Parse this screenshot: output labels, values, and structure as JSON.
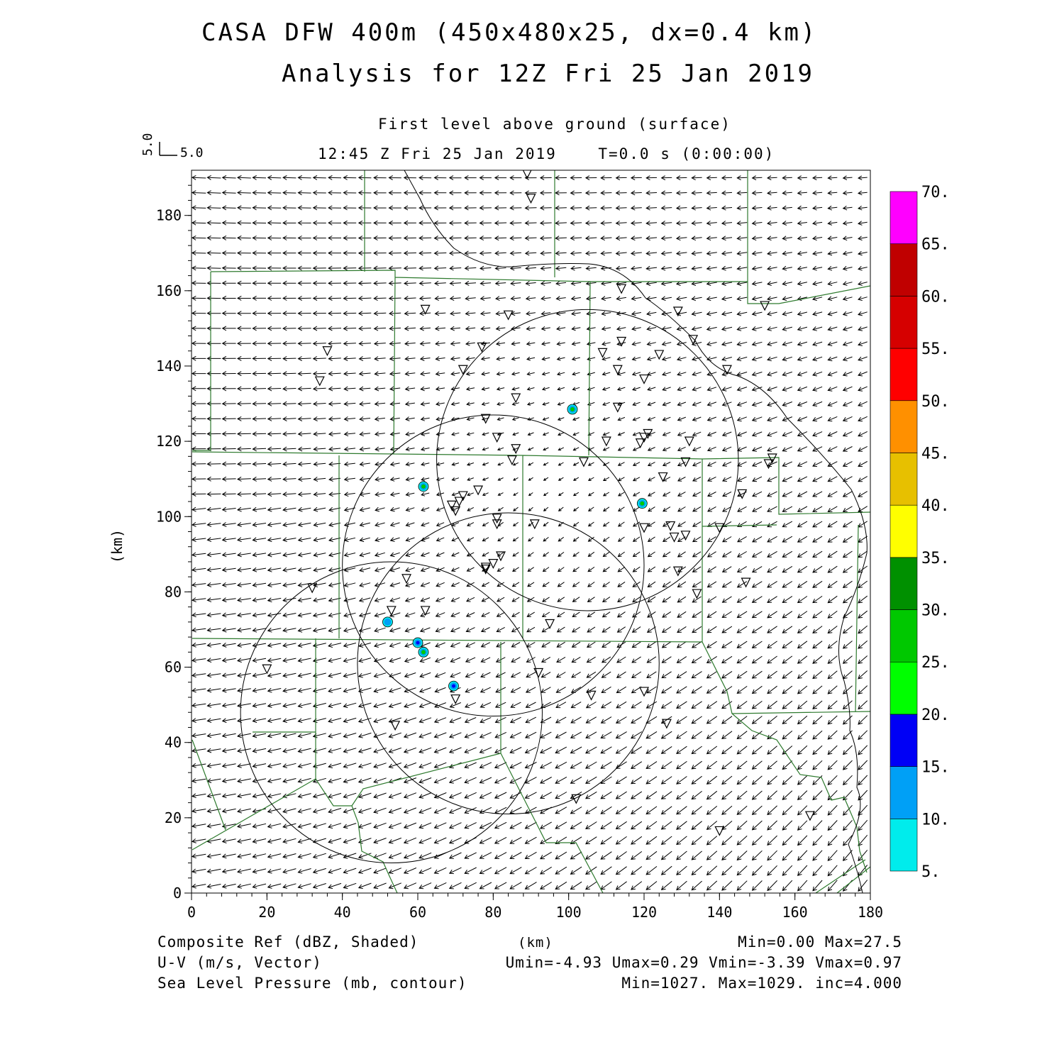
{
  "title": {
    "line1": "CASA DFW 400m (450x480x25, dx=0.4 km)",
    "line2": "Analysis for 12Z Fri 25 Jan 2019"
  },
  "subtitle": {
    "level": "First level above ground (surface)",
    "time": "12:45 Z Fri 25 Jan 2019    T=0.0 s (0:00:00)"
  },
  "vector_key": {
    "u_label": "5.0",
    "v_label": "5.0"
  },
  "footer": {
    "field1": "Composite Ref (dBZ, Shaded)",
    "field2": "U-V (m/s, Vector)",
    "field3": "Sea Level Pressure (mb, contour)",
    "xunit": "(km)",
    "stats1": "Min=0.00 Max=27.5",
    "stats2": "Umin=-4.93 Umax=0.29 Vmin=-3.39 Vmax=0.97",
    "stats3": "Min=1027. Max=1029. inc=4.000"
  },
  "chart_data": {
    "type": "map",
    "xlabel": "",
    "ylabel": "(km)",
    "xlim": [
      0,
      180
    ],
    "ylim": [
      0,
      192
    ],
    "xticks": [
      "0",
      "20",
      "40",
      "60",
      "80",
      "100",
      "120",
      "140",
      "160",
      "180"
    ],
    "yticks": [
      "0",
      "20",
      "40",
      "60",
      "80",
      "100",
      "120",
      "140",
      "160",
      "180"
    ],
    "colorbar": {
      "labels": [
        "5.",
        "10.",
        "15.",
        "20.",
        "25.",
        "30.",
        "35.",
        "40.",
        "45.",
        "50.",
        "55.",
        "60.",
        "65.",
        "70."
      ],
      "colors": [
        "#00ecec",
        "#00a0f6",
        "#0000f6",
        "#00ff00",
        "#00c800",
        "#009000",
        "#ffff00",
        "#e7c000",
        "#ff9000",
        "#ff0000",
        "#d60000",
        "#c00000",
        "#ff00ff"
      ]
    },
    "radar_rings": [
      {
        "cx": 53,
        "cy": 48,
        "r": 40
      },
      {
        "cx": 84,
        "cy": 61,
        "r": 40
      },
      {
        "cx": 80,
        "cy": 87,
        "r": 40
      },
      {
        "cx": 105,
        "cy": 115,
        "r": 40
      }
    ],
    "echoes": [
      {
        "x": 101,
        "y": 128.5,
        "dbz": 25
      },
      {
        "x": 61.5,
        "y": 108,
        "dbz": 25
      },
      {
        "x": 119.5,
        "y": 103.5,
        "dbz": 25
      },
      {
        "x": 52,
        "y": 72,
        "dbz": 10
      },
      {
        "x": 60,
        "y": 66.5,
        "dbz": 15
      },
      {
        "x": 61.5,
        "y": 64,
        "dbz": 25
      },
      {
        "x": 69.5,
        "y": 55,
        "dbz": 15
      }
    ],
    "stations": [
      [
        89,
        191
      ],
      [
        90,
        184.5
      ],
      [
        36,
        144
      ],
      [
        34,
        136
      ],
      [
        62,
        155
      ],
      [
        84,
        153.5
      ],
      [
        77,
        145
      ],
      [
        72,
        139
      ],
      [
        86,
        131.5
      ],
      [
        78,
        126
      ],
      [
        81,
        121
      ],
      [
        86,
        118
      ],
      [
        85,
        115
      ],
      [
        104,
        114.5
      ],
      [
        114,
        160.5
      ],
      [
        129,
        154.5
      ],
      [
        114,
        146.5
      ],
      [
        109,
        143.5
      ],
      [
        124,
        143
      ],
      [
        133,
        147
      ],
      [
        113,
        139
      ],
      [
        120,
        136.5
      ],
      [
        113,
        129
      ],
      [
        142,
        139
      ],
      [
        121,
        122
      ],
      [
        120,
        121
      ],
      [
        119,
        119.5
      ],
      [
        110,
        120
      ],
      [
        132,
        120
      ],
      [
        131,
        114.5
      ],
      [
        125,
        110.5
      ],
      [
        154,
        115.5
      ],
      [
        153,
        114
      ],
      [
        152,
        156
      ],
      [
        146,
        106
      ],
      [
        76,
        107
      ],
      [
        72,
        105.5
      ],
      [
        71,
        104
      ],
      [
        69,
        103
      ],
      [
        70,
        101.5
      ],
      [
        81,
        99.5
      ],
      [
        81,
        98
      ],
      [
        91,
        98
      ],
      [
        120,
        97
      ],
      [
        127,
        97.5
      ],
      [
        128,
        94.5
      ],
      [
        131,
        95
      ],
      [
        140,
        97
      ],
      [
        80,
        87.5
      ],
      [
        78,
        86.5
      ],
      [
        82,
        89.5
      ],
      [
        78,
        86
      ],
      [
        129,
        85.5
      ],
      [
        134,
        79.5
      ],
      [
        147,
        82.5
      ],
      [
        32,
        81
      ],
      [
        57,
        83.5
      ],
      [
        53,
        75
      ],
      [
        62,
        75
      ],
      [
        95,
        71.5
      ],
      [
        20,
        59.5
      ],
      [
        92,
        58.5
      ],
      [
        70,
        51.5
      ],
      [
        106,
        52.5
      ],
      [
        120,
        53.5
      ],
      [
        54,
        44.5
      ],
      [
        126,
        45
      ],
      [
        102,
        25
      ],
      [
        164,
        20.5
      ],
      [
        140,
        16.5
      ]
    ]
  }
}
